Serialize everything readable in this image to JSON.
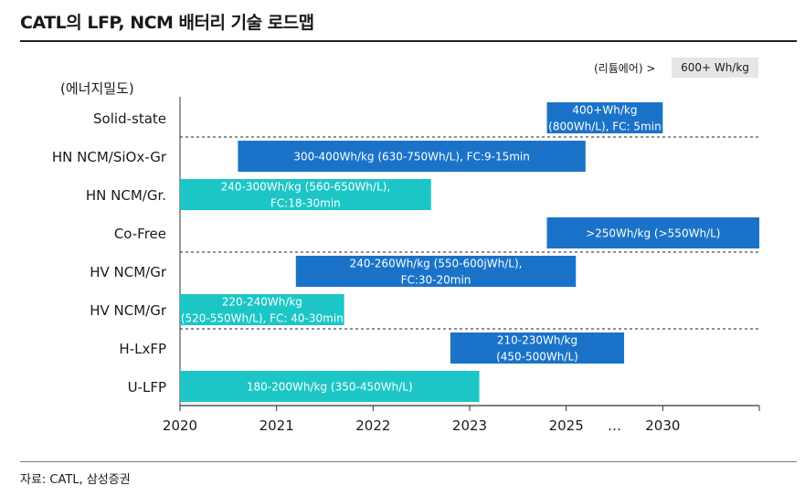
{
  "header": {
    "title": "CATL의 LFP, NCM 배터리 기술 로드맵",
    "unit_label": "(리튬에어) >",
    "unit_value": "600+ Wh/kg"
  },
  "footer": {
    "source": "자료: CATL, 삼성증권"
  },
  "colors": {
    "dark_blue": "#1a73c8",
    "teal": "#1cc6c6",
    "axis": "#333333"
  },
  "chart_data": {
    "type": "gantt",
    "ylabel": "(에너지밀도)",
    "x_ticks": [
      "2020",
      "2021",
      "2022",
      "2023",
      "2025",
      "…",
      "2030"
    ],
    "x_tick_positions": [
      2020,
      2021,
      2022,
      2023,
      2024,
      2024.5,
      2025
    ],
    "xlim": [
      2020,
      2026
    ],
    "categories": [
      "Solid-state",
      "HN NCM/SiOx-Gr",
      "HN NCM/Gr.",
      "Co-Free",
      "HV NCM/Gr",
      "HV NCM/Gr",
      "H-LxFP",
      "U-LFP"
    ],
    "separators_after_rows": [
      0,
      3,
      5
    ],
    "bars": [
      {
        "row": 0,
        "start": 2023.8,
        "end": 2025.0,
        "color": "dark_blue",
        "lines": [
          "400+Wh/kg",
          "(800Wh/L), FC: 5min"
        ]
      },
      {
        "row": 1,
        "start": 2020.6,
        "end": 2024.2,
        "color": "dark_blue",
        "lines": [
          "300-400Wh/kg (630-750Wh/L), FC:9-15min"
        ]
      },
      {
        "row": 2,
        "start": 2020.0,
        "end": 2022.6,
        "color": "teal",
        "lines": [
          "240-300Wh/kg (560-650Wh/L),",
          "FC:18-30min"
        ]
      },
      {
        "row": 3,
        "start": 2023.8,
        "end": 2026.0,
        "color": "dark_blue",
        "lines": [
          ">250Wh/kg (>550Wh/L)"
        ]
      },
      {
        "row": 4,
        "start": 2021.2,
        "end": 2024.1,
        "color": "dark_blue",
        "lines": [
          "240-260Wh/kg (550-600jWh/L),",
          "FC:30-20min"
        ]
      },
      {
        "row": 5,
        "start": 2020.0,
        "end": 2021.7,
        "color": "teal",
        "lines": [
          "220-240Wh/kg",
          "(520-550Wh/L), FC: 40-30min"
        ]
      },
      {
        "row": 6,
        "start": 2022.8,
        "end": 2024.6,
        "color": "dark_blue",
        "lines": [
          "210-230Wh/kg",
          "(450-500Wh/L)"
        ]
      },
      {
        "row": 7,
        "start": 2020.0,
        "end": 2023.1,
        "color": "teal",
        "lines": [
          "180-200Wh/kg (350-450Wh/L)"
        ]
      }
    ]
  }
}
